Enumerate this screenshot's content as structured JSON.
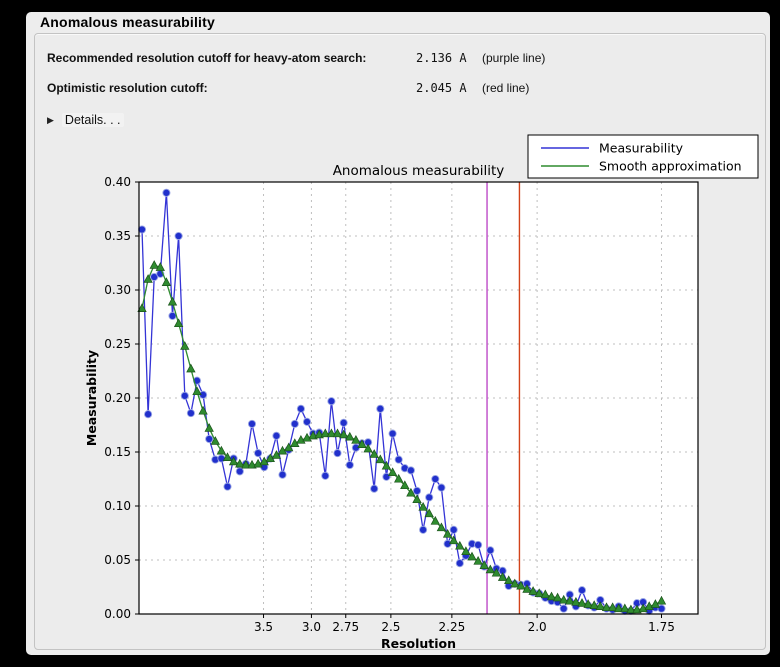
{
  "window": {
    "title": "Anomalous measurability"
  },
  "info_rows": [
    {
      "label": "Recommended resolution cutoff for heavy-atom search:",
      "value": "2.136 A",
      "note": "(purple line)"
    },
    {
      "label": "Optimistic resolution cutoff:",
      "value": "2.045 A",
      "note": "(red line)"
    }
  ],
  "details": {
    "label": "Details. . .",
    "disclosure_icon": "▶"
  },
  "chart_data": {
    "type": "line",
    "title": "Anomalous measurability",
    "xlabel": "Resolution",
    "ylabel": "Measurability",
    "x_axis": {
      "scale": "inverse_d_squared",
      "range_s": [
        0.005,
        0.349
      ],
      "ticks": [
        {
          "label": "3.5",
          "d": 3.5
        },
        {
          "label": "3.0",
          "d": 3.0
        },
        {
          "label": "2.75",
          "d": 2.75
        },
        {
          "label": "2.5",
          "d": 2.5
        },
        {
          "label": "2.25",
          "d": 2.25
        },
        {
          "label": "2.0",
          "d": 2.0
        },
        {
          "label": "1.75",
          "d": 1.75
        }
      ]
    },
    "y_axis": {
      "range": [
        0,
        0.4
      ],
      "ticks": [
        {
          "v": 0.0,
          "label": "0.00"
        },
        {
          "v": 0.05,
          "label": "0.05"
        },
        {
          "v": 0.1,
          "label": "0.10"
        },
        {
          "v": 0.15,
          "label": "0.15"
        },
        {
          "v": 0.2,
          "label": "0.20"
        },
        {
          "v": 0.25,
          "label": "0.25"
        },
        {
          "v": 0.3,
          "label": "0.30"
        },
        {
          "v": 0.35,
          "label": "0.35"
        },
        {
          "v": 0.4,
          "label": "0.40"
        }
      ]
    },
    "grid": true,
    "grid_color": "#bfbfbf",
    "legend": {
      "position": "top-right"
    },
    "vlines": [
      {
        "name": "purple line",
        "d": 2.136,
        "color": "#bd4bc8"
      },
      {
        "name": "red line",
        "d": 2.045,
        "color": "#d2431a"
      }
    ],
    "series": [
      {
        "name": "Measurability",
        "color": "#3434d6",
        "marker": "circle",
        "marker_color": "#2130cc",
        "s_start": 0.00683,
        "s_step": 0.003761,
        "values": [
          0.356,
          0.185,
          0.312,
          0.315,
          0.39,
          0.276,
          0.35,
          0.202,
          0.186,
          0.216,
          0.203,
          0.162,
          0.143,
          0.144,
          0.118,
          0.144,
          0.132,
          0.139,
          0.176,
          0.149,
          0.136,
          0.144,
          0.165,
          0.129,
          0.152,
          0.176,
          0.19,
          0.178,
          0.167,
          0.168,
          0.128,
          0.197,
          0.149,
          0.177,
          0.138,
          0.154,
          0.158,
          0.159,
          0.116,
          0.19,
          0.127,
          0.167,
          0.143,
          0.135,
          0.133,
          0.114,
          0.078,
          0.108,
          0.125,
          0.117,
          0.065,
          0.078,
          0.047,
          0.054,
          0.065,
          0.064,
          0.044,
          0.059,
          0.042,
          0.04,
          0.026,
          0.028,
          0.027,
          0.028,
          0.02,
          0.019,
          0.015,
          0.012,
          0.011,
          0.005,
          0.018,
          0.007,
          0.022,
          0.008,
          0.006,
          0.013,
          0.005,
          0.004,
          0.007,
          0.003,
          0.003,
          0.01,
          0.011,
          0.003,
          0.006,
          0.005
        ]
      },
      {
        "name": "Smooth approximation",
        "color": "#2f8b2f",
        "marker": "triangle",
        "marker_color": "#2f8b2f",
        "s_start": 0.00683,
        "s_step": 0.003761,
        "values": [
          0.283,
          0.31,
          0.323,
          0.321,
          0.307,
          0.289,
          0.269,
          0.248,
          0.227,
          0.206,
          0.188,
          0.172,
          0.16,
          0.151,
          0.145,
          0.141,
          0.139,
          0.138,
          0.138,
          0.139,
          0.141,
          0.144,
          0.147,
          0.151,
          0.154,
          0.158,
          0.161,
          0.163,
          0.165,
          0.166,
          0.167,
          0.167,
          0.167,
          0.166,
          0.164,
          0.161,
          0.157,
          0.153,
          0.148,
          0.143,
          0.137,
          0.131,
          0.125,
          0.119,
          0.112,
          0.106,
          0.099,
          0.093,
          0.086,
          0.08,
          0.074,
          0.068,
          0.063,
          0.058,
          0.053,
          0.049,
          0.045,
          0.041,
          0.038,
          0.034,
          0.031,
          0.028,
          0.026,
          0.023,
          0.021,
          0.019,
          0.018,
          0.016,
          0.015,
          0.013,
          0.012,
          0.011,
          0.01,
          0.009,
          0.008,
          0.007,
          0.006,
          0.006,
          0.005,
          0.005,
          0.004,
          0.004,
          0.005,
          0.007,
          0.009,
          0.012
        ]
      }
    ]
  }
}
